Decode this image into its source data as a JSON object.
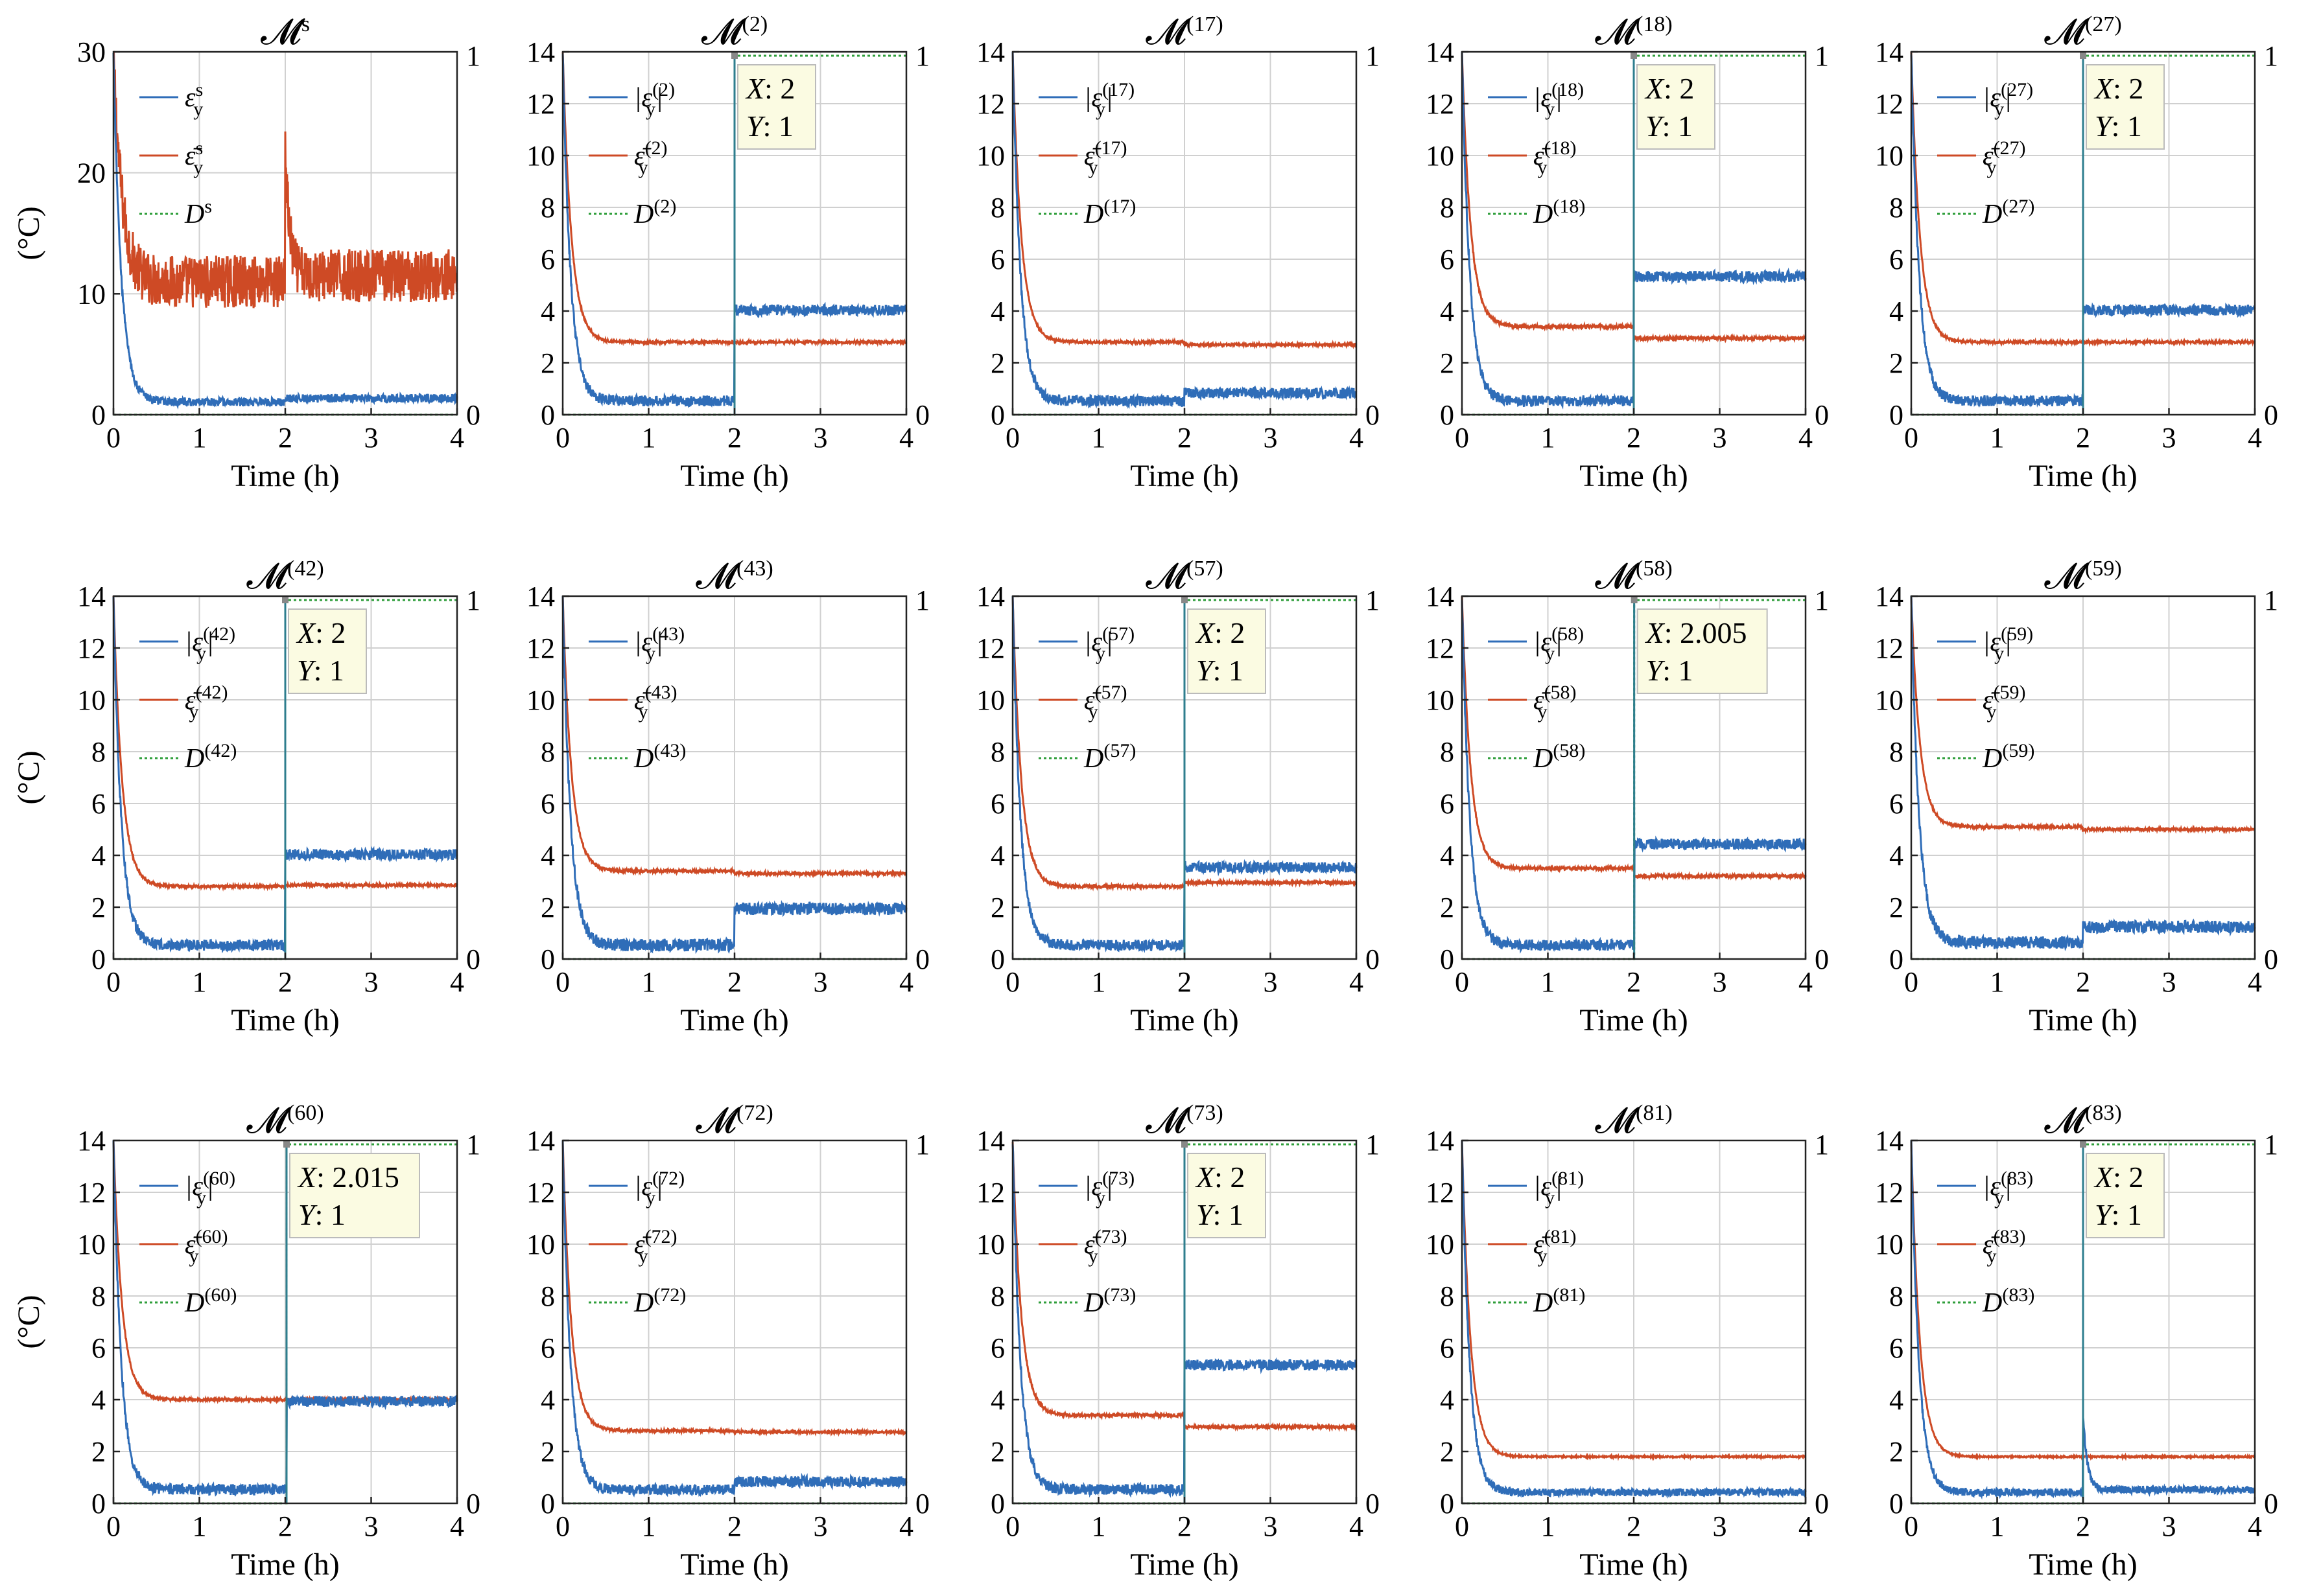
{
  "figure": {
    "ylabel": "(°C)",
    "xlabel": "Time (h)",
    "colors": {
      "error_line": "#2F6DB8",
      "mean_line": "#CE4A25",
      "decision_line": "#2E9E3A",
      "grid": "#D0D0D0",
      "tip_fill": "#FBFBE2"
    }
  },
  "chart_data": [
    {
      "type": "line",
      "title": "𝓜",
      "title_sup": "s",
      "xlim": [
        0,
        4
      ],
      "ylim": [
        0,
        30
      ],
      "yticks": [
        "0",
        "10",
        "20",
        "30"
      ],
      "xticks": [
        "0",
        "1",
        "2",
        "3",
        "4"
      ],
      "y2ticks": [
        "0",
        "1"
      ],
      "legend": [
        {
          "name": "ε",
          "sub": "y",
          "sup": "s",
          "abs": false
        },
        {
          "name": "ε̄",
          "sub": "y",
          "sup": "s",
          "abs": false
        },
        {
          "name": "D",
          "sup": "s",
          "abs": false
        }
      ],
      "series": [
        {
          "name": "error",
          "peak": 30,
          "steady1": 1.0,
          "steady2": 1.3,
          "noise": 0.6
        },
        {
          "name": "mean",
          "peak": 30,
          "steady1": 11,
          "steady2": 11.5,
          "spike": 22,
          "noise": 2.2
        },
        {
          "name": "decision",
          "values": [
            0,
            0
          ]
        }
      ]
    },
    {
      "type": "line",
      "title": "𝓜",
      "title_sup": "(2)",
      "xlim": [
        0,
        4
      ],
      "ylim": [
        0,
        14
      ],
      "yticks": [
        "0",
        "2",
        "4",
        "6",
        "8",
        "10",
        "12",
        "14"
      ],
      "xticks": [
        "0",
        "1",
        "2",
        "3",
        "4"
      ],
      "y2ticks": [
        "0",
        "1"
      ],
      "legend_label": "(2)",
      "datatip": {
        "x": "2",
        "y": "1"
      },
      "series": [
        {
          "name": "error",
          "peak": 14,
          "steady1": 0.5,
          "steady2": 4.0,
          "noise": 0.35
        },
        {
          "name": "mean",
          "peak": 14,
          "steady1": 2.8,
          "steady2": 2.8,
          "noise": 0.05
        },
        {
          "name": "decision",
          "switch": 2
        }
      ]
    },
    {
      "type": "line",
      "title": "𝓜",
      "title_sup": "(17)",
      "xlim": [
        0,
        4
      ],
      "ylim": [
        0,
        14
      ],
      "yticks": [
        "0",
        "2",
        "4",
        "6",
        "8",
        "10",
        "12",
        "14"
      ],
      "xticks": [
        "0",
        "1",
        "2",
        "3",
        "4"
      ],
      "y2ticks": [
        "0",
        "1"
      ],
      "legend_label": "(17)",
      "series": [
        {
          "name": "error",
          "peak": 14,
          "steady1": 0.5,
          "steady2": 0.8,
          "noise": 0.35
        },
        {
          "name": "mean",
          "peak": 14,
          "steady1": 2.8,
          "steady2": 2.7,
          "noise": 0.05
        },
        {
          "name": "decision",
          "values": [
            0,
            0
          ]
        }
      ]
    },
    {
      "type": "line",
      "title": "𝓜",
      "title_sup": "(18)",
      "xlim": [
        0,
        4
      ],
      "ylim": [
        0,
        14
      ],
      "yticks": [
        "0",
        "2",
        "4",
        "6",
        "8",
        "10",
        "12",
        "14"
      ],
      "xticks": [
        "0",
        "1",
        "2",
        "3",
        "4"
      ],
      "y2ticks": [
        "0",
        "1"
      ],
      "legend_label": "(18)",
      "datatip": {
        "x": "2",
        "y": "1"
      },
      "series": [
        {
          "name": "error",
          "peak": 14,
          "steady1": 0.5,
          "steady2": 5.3,
          "noise": 0.35
        },
        {
          "name": "mean",
          "peak": 14,
          "steady1": 3.4,
          "steady2": 2.95,
          "noise": 0.07
        },
        {
          "name": "decision",
          "switch": 2
        }
      ]
    },
    {
      "type": "line",
      "title": "𝓜",
      "title_sup": "(27)",
      "xlim": [
        0,
        4
      ],
      "ylim": [
        0,
        14
      ],
      "yticks": [
        "0",
        "2",
        "4",
        "6",
        "8",
        "10",
        "12",
        "14"
      ],
      "xticks": [
        "0",
        "1",
        "2",
        "3",
        "4"
      ],
      "y2ticks": [
        "0",
        "1"
      ],
      "legend_label": "(27)",
      "datatip": {
        "x": "2",
        "y": "1"
      },
      "series": [
        {
          "name": "error",
          "peak": 14,
          "steady1": 0.5,
          "steady2": 4.0,
          "noise": 0.35
        },
        {
          "name": "mean",
          "peak": 14,
          "steady1": 2.8,
          "steady2": 2.8,
          "noise": 0.05
        },
        {
          "name": "decision",
          "switch": 2
        }
      ]
    },
    {
      "type": "line",
      "title": "𝓜",
      "title_sup": "(42)",
      "xlim": [
        0,
        4
      ],
      "ylim": [
        0,
        14
      ],
      "yticks": [
        "0",
        "2",
        "4",
        "6",
        "8",
        "10",
        "12",
        "14"
      ],
      "xticks": [
        "0",
        "1",
        "2",
        "3",
        "4"
      ],
      "y2ticks": [
        "0",
        "1"
      ],
      "legend_label": "(42)",
      "datatip": {
        "x": "2",
        "y": "1"
      },
      "series": [
        {
          "name": "error",
          "peak": 14,
          "steady1": 0.5,
          "steady2": 4.0,
          "noise": 0.35
        },
        {
          "name": "mean",
          "peak": 14,
          "steady1": 2.8,
          "steady2": 2.85,
          "noise": 0.05
        },
        {
          "name": "decision",
          "switch": 2
        }
      ]
    },
    {
      "type": "line",
      "title": "𝓜",
      "title_sup": "(43)",
      "xlim": [
        0,
        4
      ],
      "ylim": [
        0,
        14
      ],
      "yticks": [
        "0",
        "2",
        "4",
        "6",
        "8",
        "10",
        "12",
        "14"
      ],
      "xticks": [
        "0",
        "1",
        "2",
        "3",
        "4"
      ],
      "y2ticks": [
        "0",
        "1"
      ],
      "legend_label": "(43)",
      "series": [
        {
          "name": "error",
          "peak": 14,
          "steady1": 0.5,
          "steady2": 1.9,
          "noise": 0.4
        },
        {
          "name": "mean",
          "peak": 14,
          "steady1": 3.4,
          "steady2": 3.3,
          "noise": 0.06
        },
        {
          "name": "decision",
          "values": [
            0,
            0
          ]
        }
      ]
    },
    {
      "type": "line",
      "title": "𝓜",
      "title_sup": "(57)",
      "xlim": [
        0,
        4
      ],
      "ylim": [
        0,
        14
      ],
      "yticks": [
        "0",
        "2",
        "4",
        "6",
        "8",
        "10",
        "12",
        "14"
      ],
      "xticks": [
        "0",
        "1",
        "2",
        "3",
        "4"
      ],
      "y2ticks": [
        "0",
        "1"
      ],
      "legend_label": "(57)",
      "datatip": {
        "x": "2",
        "y": "1"
      },
      "series": [
        {
          "name": "error",
          "peak": 14,
          "steady1": 0.5,
          "steady2": 3.5,
          "noise": 0.35
        },
        {
          "name": "mean",
          "peak": 14,
          "steady1": 2.8,
          "steady2": 2.95,
          "noise": 0.06
        },
        {
          "name": "decision",
          "switch": 2
        }
      ]
    },
    {
      "type": "line",
      "title": "𝓜",
      "title_sup": "(58)",
      "xlim": [
        0,
        4
      ],
      "ylim": [
        0,
        14
      ],
      "yticks": [
        "0",
        "2",
        "4",
        "6",
        "8",
        "10",
        "12",
        "14"
      ],
      "xticks": [
        "0",
        "1",
        "2",
        "3",
        "4"
      ],
      "y2ticks": [
        "0",
        "1"
      ],
      "legend_label": "(58)",
      "datatip": {
        "x": "2.005",
        "y": "1"
      },
      "series": [
        {
          "name": "error",
          "peak": 14,
          "steady1": 0.5,
          "steady2": 4.4,
          "noise": 0.35
        },
        {
          "name": "mean",
          "peak": 14,
          "steady1": 3.5,
          "steady2": 3.2,
          "noise": 0.06
        },
        {
          "name": "decision",
          "switch": 2.005
        }
      ]
    },
    {
      "type": "line",
      "title": "𝓜",
      "title_sup": "(59)",
      "xlim": [
        0,
        4
      ],
      "ylim": [
        0,
        14
      ],
      "yticks": [
        "0",
        "2",
        "4",
        "6",
        "8",
        "10",
        "12",
        "14"
      ],
      "xticks": [
        "0",
        "1",
        "2",
        "3",
        "4"
      ],
      "y2ticks": [
        "0",
        "1"
      ],
      "legend_label": "(59)",
      "legend_no_d": false,
      "series": [
        {
          "name": "error",
          "peak": 14,
          "steady1": 0.6,
          "steady2": 1.2,
          "noise": 0.4
        },
        {
          "name": "mean",
          "peak": 14,
          "steady1": 5.1,
          "steady2": 5.0,
          "noise": 0.05
        },
        {
          "name": "decision",
          "values": [
            0,
            0
          ]
        }
      ]
    },
    {
      "type": "line",
      "title": "𝓜",
      "title_sup": "(60)",
      "xlim": [
        0,
        4
      ],
      "ylim": [
        0,
        14
      ],
      "yticks": [
        "0",
        "2",
        "4",
        "6",
        "8",
        "10",
        "12",
        "14"
      ],
      "xticks": [
        "0",
        "1",
        "2",
        "3",
        "4"
      ],
      "y2ticks": [
        "0",
        "1"
      ],
      "legend_label": "(60)",
      "datatip": {
        "x": "2.015",
        "y": "1"
      },
      "series": [
        {
          "name": "error",
          "peak": 14,
          "steady1": 0.5,
          "steady2": 3.9,
          "noise": 0.35
        },
        {
          "name": "mean",
          "peak": 14,
          "steady1": 4.0,
          "steady2": 4.0,
          "noise": 0.05
        },
        {
          "name": "decision",
          "switch": 2.015
        }
      ]
    },
    {
      "type": "line",
      "title": "𝓜",
      "title_sup": "(72)",
      "xlim": [
        0,
        4
      ],
      "ylim": [
        0,
        14
      ],
      "yticks": [
        "0",
        "2",
        "4",
        "6",
        "8",
        "10",
        "12",
        "14"
      ],
      "xticks": [
        "0",
        "1",
        "2",
        "3",
        "4"
      ],
      "y2ticks": [
        "0",
        "1"
      ],
      "legend_label": "(72)",
      "series": [
        {
          "name": "error",
          "peak": 14,
          "steady1": 0.5,
          "steady2": 0.8,
          "noise": 0.35
        },
        {
          "name": "mean",
          "peak": 14,
          "steady1": 2.8,
          "steady2": 2.75,
          "noise": 0.05
        },
        {
          "name": "decision",
          "values": [
            0,
            0
          ]
        }
      ]
    },
    {
      "type": "line",
      "title": "𝓜",
      "title_sup": "(73)",
      "xlim": [
        0,
        4
      ],
      "ylim": [
        0,
        14
      ],
      "yticks": [
        "0",
        "2",
        "4",
        "6",
        "8",
        "10",
        "12",
        "14"
      ],
      "xticks": [
        "0",
        "1",
        "2",
        "3",
        "4"
      ],
      "y2ticks": [
        "0",
        "1"
      ],
      "legend_label": "(73)",
      "datatip": {
        "x": "2",
        "y": "1"
      },
      "series": [
        {
          "name": "error",
          "peak": 14,
          "steady1": 0.5,
          "steady2": 5.3,
          "noise": 0.35
        },
        {
          "name": "mean",
          "peak": 14,
          "steady1": 3.4,
          "steady2": 2.95,
          "noise": 0.06
        },
        {
          "name": "decision",
          "switch": 2
        }
      ]
    },
    {
      "type": "line",
      "title": "𝓜",
      "title_sup": "(81)",
      "xlim": [
        0,
        4
      ],
      "ylim": [
        0,
        14
      ],
      "yticks": [
        "0",
        "2",
        "4",
        "6",
        "8",
        "10",
        "12",
        "14"
      ],
      "xticks": [
        "0",
        "1",
        "2",
        "3",
        "4"
      ],
      "y2ticks": [
        "0",
        "1"
      ],
      "legend_label": "(81)",
      "series": [
        {
          "name": "error",
          "peak": 14,
          "steady1": 0.4,
          "steady2": 0.4,
          "noise": 0.25
        },
        {
          "name": "mean",
          "peak": 14,
          "steady1": 1.8,
          "steady2": 1.8,
          "noise": 0.03
        },
        {
          "name": "decision",
          "values": [
            0,
            0
          ]
        }
      ]
    },
    {
      "type": "line",
      "title": "𝓜",
      "title_sup": "(83)",
      "xlim": [
        0,
        4
      ],
      "ylim": [
        0,
        14
      ],
      "yticks": [
        "0",
        "2",
        "4",
        "6",
        "8",
        "10",
        "12",
        "14"
      ],
      "xticks": [
        "0",
        "1",
        "2",
        "3",
        "4"
      ],
      "y2ticks": [
        "0",
        "1"
      ],
      "legend_label": "(83)",
      "datatip": {
        "x": "2",
        "y": "1"
      },
      "series": [
        {
          "name": "error",
          "peak": 14,
          "steady1": 0.4,
          "steady2": 0.5,
          "spike": 3.4,
          "noise": 0.25
        },
        {
          "name": "mean",
          "peak": 14,
          "steady1": 1.8,
          "steady2": 1.8,
          "noise": 0.03
        },
        {
          "name": "decision",
          "switch": 2
        }
      ]
    }
  ]
}
